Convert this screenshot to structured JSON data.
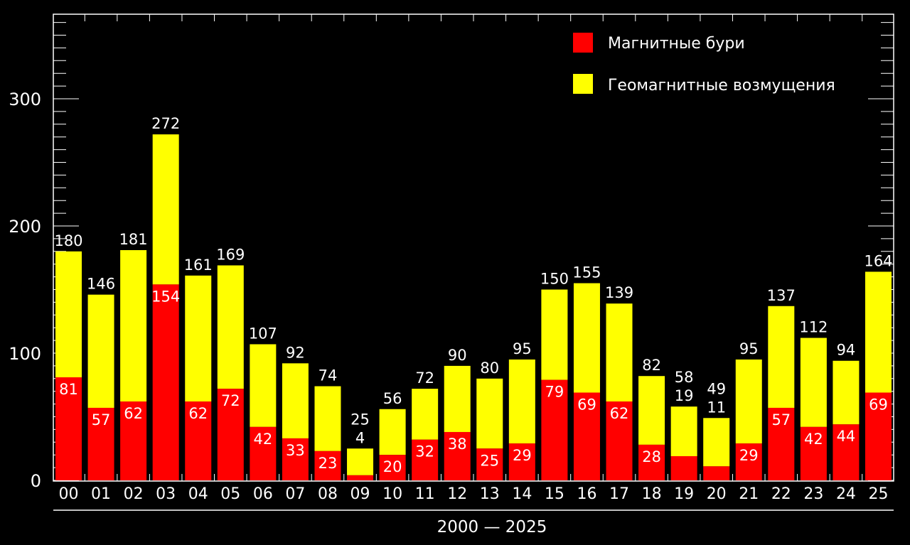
{
  "chart_data": {
    "type": "bar",
    "stacked": true,
    "title": "",
    "xlabel": "2000 — 2025",
    "ylabel": "",
    "ylim": [
      0,
      370
    ],
    "yticks": [
      0,
      100,
      200,
      300
    ],
    "grid": false,
    "legend_position": "top-right",
    "categories": [
      "00",
      "01",
      "02",
      "03",
      "04",
      "05",
      "06",
      "07",
      "08",
      "09",
      "10",
      "11",
      "12",
      "13",
      "14",
      "15",
      "16",
      "17",
      "18",
      "19",
      "20",
      "21",
      "22",
      "23",
      "24",
      "25"
    ],
    "totals": [
      180,
      146,
      181,
      272,
      161,
      169,
      107,
      92,
      74,
      25,
      56,
      72,
      90,
      80,
      95,
      150,
      155,
      139,
      82,
      58,
      49,
      95,
      137,
      112,
      94,
      164
    ],
    "series": [
      {
        "name": "Магнитные бури",
        "color": "#ff0000",
        "values": [
          81,
          57,
          62,
          154,
          62,
          72,
          42,
          33,
          23,
          4,
          20,
          32,
          38,
          25,
          29,
          79,
          69,
          62,
          28,
          19,
          11,
          29,
          57,
          42,
          44,
          69
        ]
      },
      {
        "name": "Геомагнитные возмущения",
        "color": "#ffff00"
      }
    ]
  }
}
